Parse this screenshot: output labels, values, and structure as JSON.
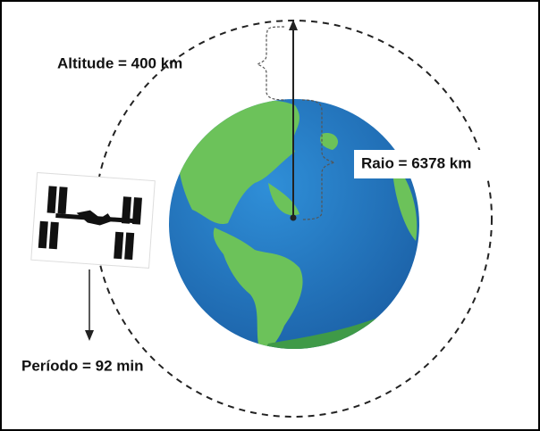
{
  "labels": {
    "altitude": "Altitude = 400 km",
    "radius": "Raio = 6378 km",
    "period": "Período = 92 min"
  }
}
